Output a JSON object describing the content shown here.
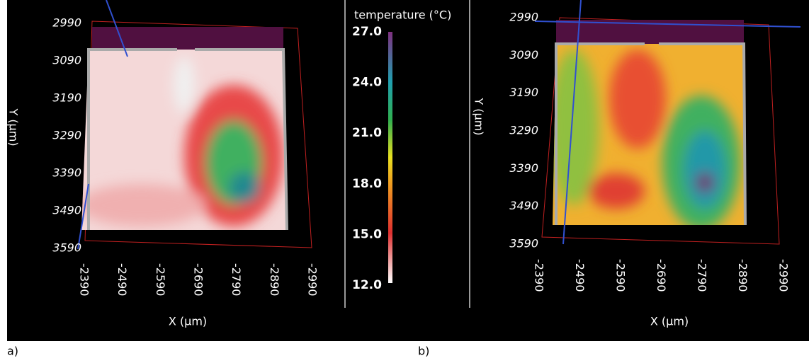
{
  "panels": [
    {
      "label": "a)",
      "y_axis_label": "Y (µm)",
      "x_axis_label": "X (µm)",
      "yticks": [
        2990,
        3090,
        3190,
        3290,
        3390,
        3490,
        3590
      ],
      "xticks": [
        -2390,
        -2490,
        -2590,
        -2690,
        -2790,
        -2890,
        -2990
      ]
    },
    {
      "label": "b)",
      "y_axis_label": "Y (µm)",
      "x_axis_label": "X (µm)",
      "yticks": [
        2990,
        3090,
        3190,
        3290,
        3390,
        3490,
        3590
      ],
      "xticks": [
        -2390,
        -2490,
        -2590,
        -2690,
        -2790,
        -2890,
        -2990
      ]
    }
  ],
  "colorbar": {
    "title": "temperature (°C)",
    "ticks": [
      {
        "value": 27,
        "label": "27.0"
      },
      {
        "value": 24,
        "label": "24.0"
      },
      {
        "value": 21,
        "label": "21.0"
      },
      {
        "value": 18,
        "label": "18.0"
      },
      {
        "value": 15,
        "label": "15.0"
      },
      {
        "value": 12,
        "label": "12.0"
      }
    ]
  }
}
